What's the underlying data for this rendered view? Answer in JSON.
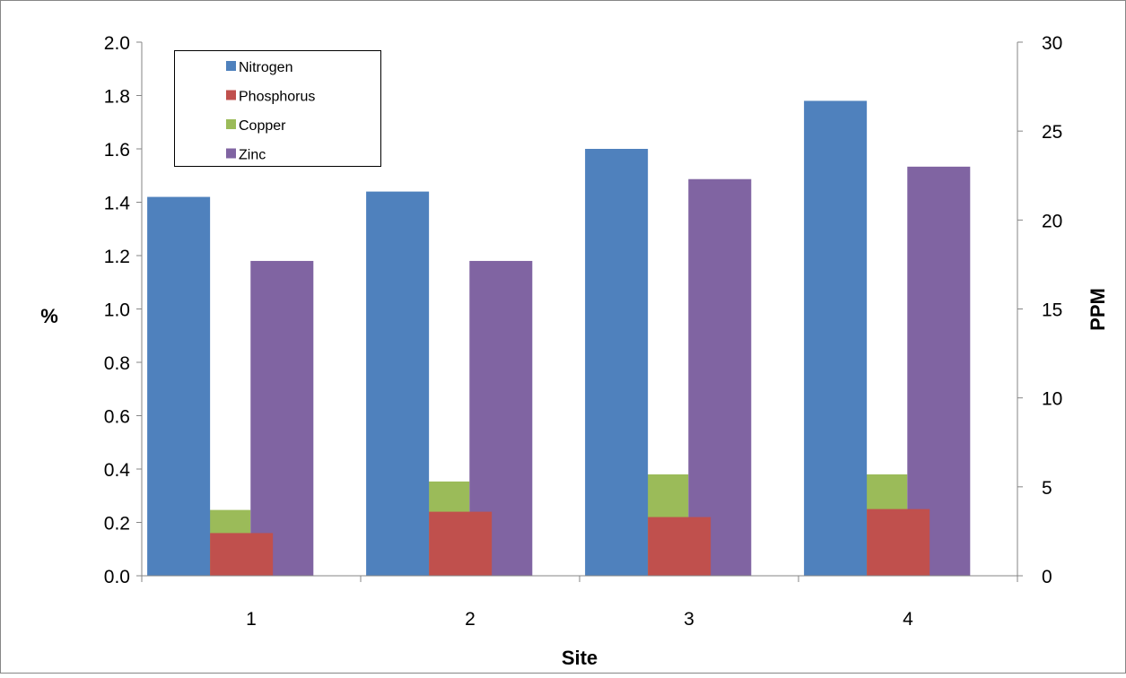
{
  "chart_data": {
    "type": "bar",
    "title": "",
    "xlabel": "Site",
    "ylabel_left": "%",
    "ylabel_right": "PPM",
    "categories": [
      "1",
      "2",
      "3",
      "4"
    ],
    "ylim_left": [
      0,
      2.0
    ],
    "ylim_right": [
      0,
      30
    ],
    "yticks_left": [
      "0.0",
      "0.2",
      "0.4",
      "0.6",
      "0.8",
      "1.0",
      "1.2",
      "1.4",
      "1.6",
      "1.8",
      "2.0"
    ],
    "yticks_right": [
      "0",
      "5",
      "10",
      "15",
      "20",
      "25",
      "30"
    ],
    "grid": false,
    "legend_position": "top-left",
    "series": [
      {
        "name": "Nitrogen",
        "axis": "left",
        "unit": "%",
        "color": "#4F81BD",
        "values": [
          1.42,
          1.44,
          1.6,
          1.78
        ]
      },
      {
        "name": "Phosphorus",
        "axis": "left",
        "unit": "%",
        "color": "#C0504D",
        "values": [
          0.16,
          0.24,
          0.22,
          0.25
        ]
      },
      {
        "name": "Copper",
        "axis": "right",
        "unit": "PPM",
        "color": "#9BBB59",
        "values": [
          3.7,
          5.3,
          5.7,
          5.7
        ]
      },
      {
        "name": "Zinc",
        "axis": "right",
        "unit": "PPM",
        "color": "#8064A2",
        "values": [
          17.7,
          17.7,
          22.3,
          23.0
        ]
      }
    ]
  }
}
